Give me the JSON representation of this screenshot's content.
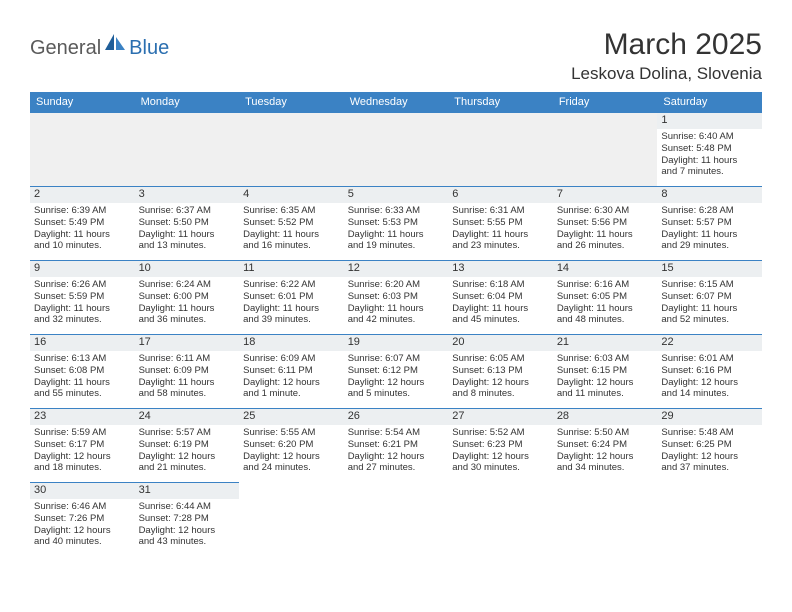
{
  "header": {
    "logo_part1": "General",
    "logo_part2": "Blue",
    "month_title": "March 2025",
    "location": "Leskova Dolina, Slovenia"
  },
  "colors": {
    "header_bg": "#3b82c4",
    "header_text": "#ffffff",
    "border": "#3b82c4",
    "blank_bg": "#f0f0f0",
    "daynum_bg": "#eceff1",
    "logo_gray": "#5a5a5a",
    "logo_blue": "#2b6fb0"
  },
  "columns": [
    "Sunday",
    "Monday",
    "Tuesday",
    "Wednesday",
    "Thursday",
    "Friday",
    "Saturday"
  ],
  "weeks": [
    [
      null,
      null,
      null,
      null,
      null,
      null,
      {
        "n": "1",
        "sunrise": "Sunrise: 6:40 AM",
        "sunset": "Sunset: 5:48 PM",
        "day1": "Daylight: 11 hours",
        "day2": "and 7 minutes."
      }
    ],
    [
      {
        "n": "2",
        "sunrise": "Sunrise: 6:39 AM",
        "sunset": "Sunset: 5:49 PM",
        "day1": "Daylight: 11 hours",
        "day2": "and 10 minutes."
      },
      {
        "n": "3",
        "sunrise": "Sunrise: 6:37 AM",
        "sunset": "Sunset: 5:50 PM",
        "day1": "Daylight: 11 hours",
        "day2": "and 13 minutes."
      },
      {
        "n": "4",
        "sunrise": "Sunrise: 6:35 AM",
        "sunset": "Sunset: 5:52 PM",
        "day1": "Daylight: 11 hours",
        "day2": "and 16 minutes."
      },
      {
        "n": "5",
        "sunrise": "Sunrise: 6:33 AM",
        "sunset": "Sunset: 5:53 PM",
        "day1": "Daylight: 11 hours",
        "day2": "and 19 minutes."
      },
      {
        "n": "6",
        "sunrise": "Sunrise: 6:31 AM",
        "sunset": "Sunset: 5:55 PM",
        "day1": "Daylight: 11 hours",
        "day2": "and 23 minutes."
      },
      {
        "n": "7",
        "sunrise": "Sunrise: 6:30 AM",
        "sunset": "Sunset: 5:56 PM",
        "day1": "Daylight: 11 hours",
        "day2": "and 26 minutes."
      },
      {
        "n": "8",
        "sunrise": "Sunrise: 6:28 AM",
        "sunset": "Sunset: 5:57 PM",
        "day1": "Daylight: 11 hours",
        "day2": "and 29 minutes."
      }
    ],
    [
      {
        "n": "9",
        "sunrise": "Sunrise: 6:26 AM",
        "sunset": "Sunset: 5:59 PM",
        "day1": "Daylight: 11 hours",
        "day2": "and 32 minutes."
      },
      {
        "n": "10",
        "sunrise": "Sunrise: 6:24 AM",
        "sunset": "Sunset: 6:00 PM",
        "day1": "Daylight: 11 hours",
        "day2": "and 36 minutes."
      },
      {
        "n": "11",
        "sunrise": "Sunrise: 6:22 AM",
        "sunset": "Sunset: 6:01 PM",
        "day1": "Daylight: 11 hours",
        "day2": "and 39 minutes."
      },
      {
        "n": "12",
        "sunrise": "Sunrise: 6:20 AM",
        "sunset": "Sunset: 6:03 PM",
        "day1": "Daylight: 11 hours",
        "day2": "and 42 minutes."
      },
      {
        "n": "13",
        "sunrise": "Sunrise: 6:18 AM",
        "sunset": "Sunset: 6:04 PM",
        "day1": "Daylight: 11 hours",
        "day2": "and 45 minutes."
      },
      {
        "n": "14",
        "sunrise": "Sunrise: 6:16 AM",
        "sunset": "Sunset: 6:05 PM",
        "day1": "Daylight: 11 hours",
        "day2": "and 48 minutes."
      },
      {
        "n": "15",
        "sunrise": "Sunrise: 6:15 AM",
        "sunset": "Sunset: 6:07 PM",
        "day1": "Daylight: 11 hours",
        "day2": "and 52 minutes."
      }
    ],
    [
      {
        "n": "16",
        "sunrise": "Sunrise: 6:13 AM",
        "sunset": "Sunset: 6:08 PM",
        "day1": "Daylight: 11 hours",
        "day2": "and 55 minutes."
      },
      {
        "n": "17",
        "sunrise": "Sunrise: 6:11 AM",
        "sunset": "Sunset: 6:09 PM",
        "day1": "Daylight: 11 hours",
        "day2": "and 58 minutes."
      },
      {
        "n": "18",
        "sunrise": "Sunrise: 6:09 AM",
        "sunset": "Sunset: 6:11 PM",
        "day1": "Daylight: 12 hours",
        "day2": "and 1 minute."
      },
      {
        "n": "19",
        "sunrise": "Sunrise: 6:07 AM",
        "sunset": "Sunset: 6:12 PM",
        "day1": "Daylight: 12 hours",
        "day2": "and 5 minutes."
      },
      {
        "n": "20",
        "sunrise": "Sunrise: 6:05 AM",
        "sunset": "Sunset: 6:13 PM",
        "day1": "Daylight: 12 hours",
        "day2": "and 8 minutes."
      },
      {
        "n": "21",
        "sunrise": "Sunrise: 6:03 AM",
        "sunset": "Sunset: 6:15 PM",
        "day1": "Daylight: 12 hours",
        "day2": "and 11 minutes."
      },
      {
        "n": "22",
        "sunrise": "Sunrise: 6:01 AM",
        "sunset": "Sunset: 6:16 PM",
        "day1": "Daylight: 12 hours",
        "day2": "and 14 minutes."
      }
    ],
    [
      {
        "n": "23",
        "sunrise": "Sunrise: 5:59 AM",
        "sunset": "Sunset: 6:17 PM",
        "day1": "Daylight: 12 hours",
        "day2": "and 18 minutes."
      },
      {
        "n": "24",
        "sunrise": "Sunrise: 5:57 AM",
        "sunset": "Sunset: 6:19 PM",
        "day1": "Daylight: 12 hours",
        "day2": "and 21 minutes."
      },
      {
        "n": "25",
        "sunrise": "Sunrise: 5:55 AM",
        "sunset": "Sunset: 6:20 PM",
        "day1": "Daylight: 12 hours",
        "day2": "and 24 minutes."
      },
      {
        "n": "26",
        "sunrise": "Sunrise: 5:54 AM",
        "sunset": "Sunset: 6:21 PM",
        "day1": "Daylight: 12 hours",
        "day2": "and 27 minutes."
      },
      {
        "n": "27",
        "sunrise": "Sunrise: 5:52 AM",
        "sunset": "Sunset: 6:23 PM",
        "day1": "Daylight: 12 hours",
        "day2": "and 30 minutes."
      },
      {
        "n": "28",
        "sunrise": "Sunrise: 5:50 AM",
        "sunset": "Sunset: 6:24 PM",
        "day1": "Daylight: 12 hours",
        "day2": "and 34 minutes."
      },
      {
        "n": "29",
        "sunrise": "Sunrise: 5:48 AM",
        "sunset": "Sunset: 6:25 PM",
        "day1": "Daylight: 12 hours",
        "day2": "and 37 minutes."
      }
    ],
    [
      {
        "n": "30",
        "sunrise": "Sunrise: 6:46 AM",
        "sunset": "Sunset: 7:26 PM",
        "day1": "Daylight: 12 hours",
        "day2": "and 40 minutes."
      },
      {
        "n": "31",
        "sunrise": "Sunrise: 6:44 AM",
        "sunset": "Sunset: 7:28 PM",
        "day1": "Daylight: 12 hours",
        "day2": "and 43 minutes."
      },
      null,
      null,
      null,
      null,
      null
    ]
  ]
}
